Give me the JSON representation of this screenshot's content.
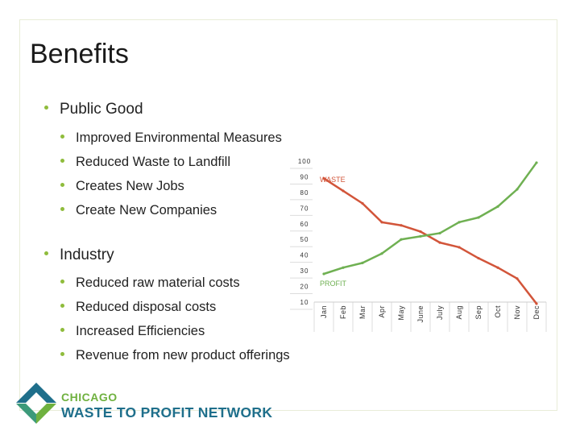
{
  "slide": {
    "title": "Benefits",
    "public_good": {
      "label": "Public Good",
      "items": [
        "Improved Environmental Measures",
        "Reduced Waste to Landfill",
        "Creates New Jobs",
        "Create New Companies"
      ]
    },
    "industry": {
      "label": "Industry",
      "items": [
        "Reduced raw material costs",
        "Reduced disposal costs",
        "Increased Efficiencies",
        "Revenue from new product offerings"
      ]
    }
  },
  "logo": {
    "line1": "CHICAGO",
    "line2": "WASTE TO PROFIT NETWORK"
  },
  "colors": {
    "bullet": "#8fbc3c",
    "waste_line": "#d2553a",
    "profit_line": "#6fb052",
    "logo_green": "#6fb13f",
    "logo_blue": "#1f6f8b"
  },
  "chart_data": {
    "type": "line",
    "categories": [
      "Jan",
      "Feb",
      "Mar",
      "Apr",
      "May",
      "June",
      "July",
      "Aug",
      "Sep",
      "Oct",
      "Nov",
      "Dec"
    ],
    "yticks": [
      "100",
      "90",
      "80",
      "70",
      "60",
      "50",
      "40",
      "30",
      "20",
      "10"
    ],
    "ylim": [
      10,
      100
    ],
    "series": [
      {
        "name": "WASTE",
        "color": "#d2553a",
        "values": [
          89,
          81,
          73,
          61,
          59,
          55,
          48,
          45,
          38,
          32,
          25,
          9
        ]
      },
      {
        "name": "PROFIT",
        "color": "#6fb052",
        "values": [
          28,
          32,
          35,
          41,
          50,
          52,
          54,
          61,
          64,
          71,
          82,
          99
        ]
      }
    ],
    "series_labels": {
      "waste": "WASTE",
      "profit": "PROFIT"
    }
  }
}
